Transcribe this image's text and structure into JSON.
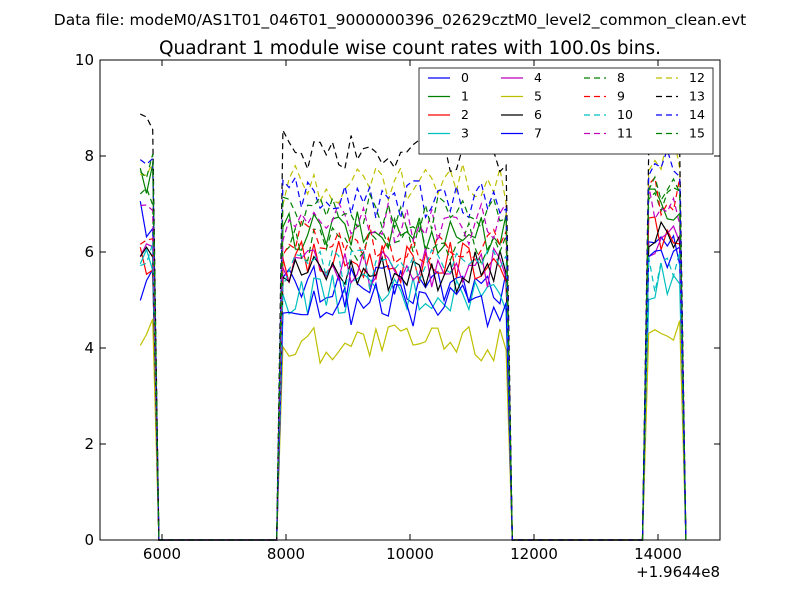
{
  "chart_data": {
    "type": "line",
    "suptitle": "Data file: modeM0/AS1T01_046T01_9000000396_02629cztM0_level2_common_clean.evt",
    "title": "Quadrant 1 module wise count rates with 100.0s bins.",
    "xlabel": "",
    "ylabel": "",
    "x_offset_label": "+1.9644e8",
    "xlim": [
      5000,
      15000
    ],
    "ylim": [
      0,
      10
    ],
    "xticks": [
      "6000",
      "8000",
      "10000",
      "12000",
      "14000"
    ],
    "yticks": [
      "0",
      "2",
      "4",
      "6",
      "8",
      "10"
    ],
    "legend_position": "top-right",
    "segments": [
      {
        "x_start": 5650,
        "x_end": 5850
      },
      {
        "x_start": 7950,
        "x_end": 11550
      },
      {
        "x_start": 13800,
        "x_end": 14400
      }
    ],
    "series": [
      {
        "name": "0",
        "color": "#0000ff",
        "dash": "solid",
        "seg_levels": [
          5.4,
          5.3,
          6.0
        ]
      },
      {
        "name": "1",
        "color": "#008000",
        "dash": "solid",
        "seg_levels": [
          7.4,
          6.4,
          7.0
        ]
      },
      {
        "name": "2",
        "color": "#ff0000",
        "dash": "solid",
        "seg_levels": [
          5.9,
          5.8,
          6.3
        ]
      },
      {
        "name": "3",
        "color": "#00bfbf",
        "dash": "solid",
        "seg_levels": [
          5.7,
          5.1,
          5.4
        ]
      },
      {
        "name": "4",
        "color": "#bf00bf",
        "dash": "solid",
        "seg_levels": [
          6.0,
          5.7,
          6.2
        ]
      },
      {
        "name": "5",
        "color": "#bfbf00",
        "dash": "solid",
        "seg_levels": [
          4.3,
          4.1,
          4.5
        ]
      },
      {
        "name": "6",
        "color": "#000000",
        "dash": "solid",
        "seg_levels": [
          6.3,
          5.6,
          6.2
        ]
      },
      {
        "name": "7",
        "color": "#0000ff",
        "dash": "solid",
        "seg_levels": [
          6.7,
          4.9,
          5.9
        ]
      },
      {
        "name": "8",
        "color": "#008000",
        "dash": "dashed",
        "seg_levels": [
          7.0,
          6.2,
          7.0
        ]
      },
      {
        "name": "9",
        "color": "#ff0000",
        "dash": "dashed",
        "seg_levels": [
          6.1,
          6.2,
          7.2
        ]
      },
      {
        "name": "10",
        "color": "#00bfbf",
        "dash": "dashed",
        "seg_levels": [
          5.8,
          5.6,
          5.6
        ]
      },
      {
        "name": "11",
        "color": "#bf00bf",
        "dash": "dashed",
        "seg_levels": [
          7.2,
          6.6,
          7.0
        ]
      },
      {
        "name": "12",
        "color": "#bfbf00",
        "dash": "dashed",
        "seg_levels": [
          8.0,
          7.4,
          8.1
        ]
      },
      {
        "name": "13",
        "color": "#000000",
        "dash": "dashed",
        "seg_levels": [
          8.5,
          8.1,
          8.4
        ]
      },
      {
        "name": "14",
        "color": "#0000ff",
        "dash": "dashed",
        "seg_levels": [
          7.7,
          7.1,
          7.8
        ]
      },
      {
        "name": "15",
        "color": "#008000",
        "dash": "dashed",
        "seg_levels": [
          7.6,
          6.8,
          7.4
        ]
      }
    ]
  }
}
